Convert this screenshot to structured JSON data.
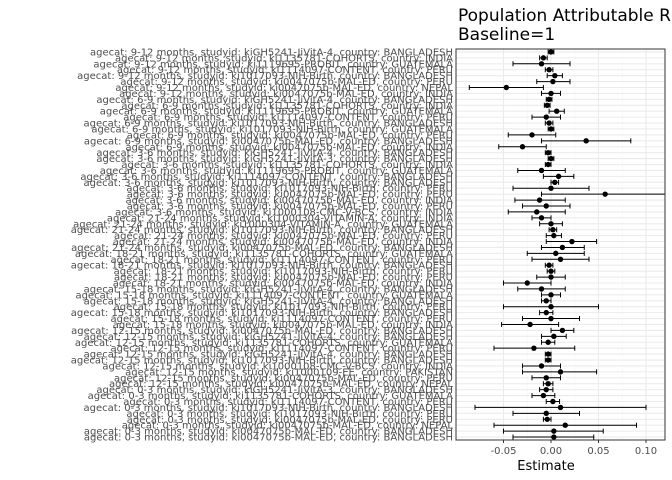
{
  "chart_data": {
    "type": "forest",
    "title": "Population Attributable Ris",
    "subtitle": "Baseline=1",
    "xlabel": "Estimate",
    "ylabel": "",
    "xlim": [
      -0.1,
      0.12
    ],
    "xticks": [
      -0.05,
      0.0,
      0.05,
      0.1
    ],
    "xtick_labels": [
      "-0.05",
      "0.00",
      "0.05",
      "0.10"
    ],
    "grid": true,
    "colors": {
      "point": "#000000",
      "grid_major": "#ebebeb",
      "grid_minor": "#f5f5f5",
      "panel_border": "#333333",
      "label": "#4d4d4d"
    },
    "rows": [
      {
        "label": "agecat: 9-12 months, studyid: kiGH5241-JiVitA-4, country: BANGLADESH",
        "est": 0.0,
        "lo": -0.003,
        "hi": 0.003
      },
      {
        "label": "agecat: 9-12 months, studyid: ki1135781-COHORTS, country: INDIA",
        "est": -0.008,
        "lo": -0.012,
        "hi": -0.004
      },
      {
        "label": "agecat: 9-12 months, studyid: ki1119695-PROBIT, country: GUATEMALA",
        "est": -0.01,
        "lo": -0.04,
        "hi": 0.02
      },
      {
        "label": "agecat: 9-12 months, studyid: ki1114097-CONTENT, country: PERU",
        "est": -0.002,
        "lo": -0.006,
        "hi": 0.002
      },
      {
        "label": "agecat: 9-12 months, studyid: ki1017093-NIH-Birth, country: BANGLADESH",
        "est": 0.004,
        "lo": -0.004,
        "hi": 0.012
      },
      {
        "label": "agecat: 9-12 months, studyid: ki0047075b-MAL-ED, country: PERU",
        "est": 0.002,
        "lo": -0.015,
        "hi": 0.02
      },
      {
        "label": "agecat: 9-12 months, studyid: ki0047075b-MAL-ED, country: NEPAL",
        "est": -0.047,
        "lo": -0.086,
        "hi": -0.008
      },
      {
        "label": "agecat: 9-12 months, studyid: ki0047075b-MAL-ED, country: INDIA",
        "est": 0.0,
        "lo": -0.01,
        "hi": 0.01
      },
      {
        "label": "agecat: 6-9 months, studyid: kiGH5241-JiVitA-4, country: BANGLADESH",
        "est": -0.002,
        "lo": -0.005,
        "hi": 0.001
      },
      {
        "label": "agecat: 6-9 months, studyid: ki1135781-COHORTS, country: INDIA",
        "est": -0.004,
        "lo": -0.007,
        "hi": -0.001
      },
      {
        "label": "agecat: 6-9 months, studyid: ki1119695-PROBIT, country: GUATEMALA",
        "est": 0.006,
        "lo": -0.002,
        "hi": 0.014
      },
      {
        "label": "agecat: 6-9 months, studyid: ki1114097-CONTENT, country: PERU",
        "est": -0.005,
        "lo": -0.02,
        "hi": 0.01
      },
      {
        "label": "agecat: 6-9 months, studyid: ki1017093-NIH-Birth, country: BANGLADESH",
        "est": -0.002,
        "lo": -0.006,
        "hi": 0.002
      },
      {
        "label": "agecat: 6-9 months, studyid: ki1017093-NIH-Birth, country: GUATEMALA",
        "est": 0.0,
        "lo": -0.003,
        "hi": 0.003
      },
      {
        "label": "agecat: 6-9 months, studyid: ki0047075b-MAL-ED, country: PERU",
        "est": -0.02,
        "lo": -0.045,
        "hi": 0.005
      },
      {
        "label": "agecat: 6-9 months, studyid: ki0047075b-MAL-ED, country: BANGLADESH",
        "est": 0.037,
        "lo": -0.01,
        "hi": 0.084
      },
      {
        "label": "agecat: 6-9 months, studyid: ki0047075b-MAL-ED, country: INDIA",
        "est": -0.03,
        "lo": -0.055,
        "hi": -0.005
      },
      {
        "label": "agecat: 3-6 months, studyid: kiGH5241-JiVitA-4, country: BANGLADESH",
        "est": -0.003,
        "lo": -0.006,
        "hi": 0.0
      },
      {
        "label": "agecat: 3-6 months, studyid: kiGH5241-JiVitA-3, country: BANGLADESH",
        "est": 0.0,
        "lo": -0.003,
        "hi": 0.003
      },
      {
        "label": "agecat: 3-6 months, studyid: ki1135781-COHORTS, country: INDIA",
        "est": -0.003,
        "lo": -0.006,
        "hi": 0.0
      },
      {
        "label": "agecat: 3-6 months, studyid: ki1119695-PROBIT, country: GUATEMALA",
        "est": -0.01,
        "lo": -0.035,
        "hi": 0.015
      },
      {
        "label": "agecat: 3-6 months, studyid: ki1114097-CONTENT, country: BANGLADESH",
        "est": 0.008,
        "lo": -0.008,
        "hi": 0.024
      },
      {
        "label": "agecat: 3-6 months, studyid: ki1017093-NIH-Birth, country: BANGLADESH",
        "est": 0.004,
        "lo": 0.0,
        "hi": 0.008
      },
      {
        "label": "agecat: 3-6 months, studyid: ki1017093-NIH-Birth, country: PERU",
        "est": 0.0,
        "lo": -0.04,
        "hi": 0.04
      },
      {
        "label": "agecat: 3-6 months, studyid: ki0047075b-MAL-ED, country: PERU",
        "est": 0.057,
        "lo": -0.01,
        "hi": 0.12
      },
      {
        "label": "agecat: 3-6 months, studyid: ki0047075b-MAL-ED, country: INDIA",
        "est": -0.012,
        "lo": -0.038,
        "hi": 0.015
      },
      {
        "label": "agecat: 3-6 months, studyid: ki0047075b-MAL-ED, country: PERU",
        "est": -0.005,
        "lo": -0.03,
        "hi": 0.02
      },
      {
        "label": "agecat: 3-6 months, studyid: ki1000108-CMC-V-BCS, country: INDIA",
        "est": -0.015,
        "lo": -0.045,
        "hi": 0.015
      },
      {
        "label": "agecat: 21-24 months, studyid: ki1000304-VITAMIN-A, country: INDIA",
        "est": -0.01,
        "lo": -0.02,
        "hi": 0.0
      },
      {
        "label": "agecat: 21-24 months, studyid: ki1000304-VITAMIN-A, country: GUATEMALA",
        "est": 0.0,
        "lo": -0.012,
        "hi": 0.012
      },
      {
        "label": "agecat: 21-24 months, studyid: ki1017093-NIH-Birth, country: BANGLADESH",
        "est": 0.002,
        "lo": -0.002,
        "hi": 0.006
      },
      {
        "label": "agecat: 21-24 months, studyid: ki0047075b-MAL-ED, country: PERU",
        "est": 0.003,
        "lo": -0.005,
        "hi": 0.011
      },
      {
        "label": "agecat: 21-24 months, studyid: ki0047075b-MAL-ED, country: INDIA",
        "est": 0.022,
        "lo": -0.005,
        "hi": 0.048
      },
      {
        "label": "agecat: 21-24 months, studyid: ki0047075b-MAL-ED, country: BANGLADESH",
        "est": 0.012,
        "lo": -0.01,
        "hi": 0.035
      },
      {
        "label": "agecat: 18-21 months, studyid: ki1135781-COHORTS, country: GUATEMALA",
        "est": 0.005,
        "lo": -0.025,
        "hi": 0.035
      },
      {
        "label": "agecat: 18-21 months, studyid: ki1114097-CONTENT, country: PERU",
        "est": 0.01,
        "lo": -0.02,
        "hi": 0.04
      },
      {
        "label": "agecat: 18-21 months, studyid: ki1017093-NIH-Birth, country: BANGLADESH",
        "est": -0.002,
        "lo": -0.006,
        "hi": 0.002
      },
      {
        "label": "agecat: 18-21 months, studyid: ki1017093-NIH-Birth, country: PERU",
        "est": 0.0,
        "lo": -0.004,
        "hi": 0.004
      },
      {
        "label": "agecat: 18-21 months, studyid: ki0047075b-MAL-ED, country: PERU",
        "est": 0.0,
        "lo": -0.015,
        "hi": 0.015
      },
      {
        "label": "agecat: 18-21 months, studyid: ki0047075b-MAL-ED, country: INDIA",
        "est": -0.025,
        "lo": -0.05,
        "hi": 0.0
      },
      {
        "label": "agecat: 15-18 months, studyid: kiGH5241-JiVitA-4, country: BANGLADESH",
        "est": -0.01,
        "lo": -0.035,
        "hi": 0.015
      },
      {
        "label": "agecat: 15-18 months, studyid: ki1114097-CONTENT, country: GUATEMALA",
        "est": 0.0,
        "lo": -0.01,
        "hi": 0.01
      },
      {
        "label": "agecat: 15-18 months, studyid: kiGH5241-JiVitA-4, country: BANGLADESH",
        "est": -0.005,
        "lo": -0.01,
        "hi": 0.0
      },
      {
        "label": "agecat: 15-18 months, studyid: ki1017093-NIH-Birth, country: PERU",
        "est": 0.0,
        "lo": -0.05,
        "hi": 0.05
      },
      {
        "label": "agecat: 15-18 months, studyid: ki1017093-NIH-Birth, country: BANGLADESH",
        "est": -0.005,
        "lo": -0.012,
        "hi": 0.002
      },
      {
        "label": "agecat: 15-18 months, studyid: ki1114097-CONTENT, country: PERU",
        "est": 0.0,
        "lo": -0.03,
        "hi": 0.03
      },
      {
        "label": "agecat: 15-18 months, studyid: ki0047075b-MAL-ED, country: INDIA",
        "est": -0.022,
        "lo": -0.052,
        "hi": 0.008
      },
      {
        "label": "agecat: 12-15 months, studyid: ki0047075b-MAL-ED, country: BANGLADESH",
        "est": 0.012,
        "lo": 0.0,
        "hi": 0.024
      },
      {
        "label": "agecat: 12-15 months, studyid: kiGH5241-JiVitA-4, country: BANGLADESH",
        "est": 0.003,
        "lo": -0.01,
        "hi": 0.016
      },
      {
        "label": "agecat: 12-15 months, studyid: ki1135781-COHORTS, country: GUATEMALA",
        "est": -0.003,
        "lo": -0.01,
        "hi": 0.004
      },
      {
        "label": "agecat: 12-15 months, studyid: ki1114097-CONTENT, country: PERU",
        "est": -0.018,
        "lo": -0.06,
        "hi": 0.025
      },
      {
        "label": "agecat: 12-15 months, studyid: kiGH5241-JiVitA-4, country: BANGLADESH",
        "est": -0.003,
        "lo": -0.006,
        "hi": 0.0
      },
      {
        "label": "agecat: 12-15 months, studyid: ki1017093-NIH-Birth, country: BANGLADESH",
        "est": -0.003,
        "lo": -0.006,
        "hi": 0.0
      },
      {
        "label": "agecat: 12-15 months, studyid: ki1000108-CMC-V-BCS, country: INDIA",
        "est": -0.01,
        "lo": -0.03,
        "hi": 0.01
      },
      {
        "label": "agecat: 12-15 months, studyid: ki1000109-EE, country: PAKISTAN",
        "est": 0.01,
        "lo": -0.03,
        "hi": 0.048
      },
      {
        "label": "agecat: 12-15 months, studyid: ki0047075b-MAL-ED, country: PERU",
        "est": -0.005,
        "lo": -0.02,
        "hi": 0.01
      },
      {
        "label": "agecat: 12-15 months, studyid: ki0047075b-MAL-ED, country: NEPAL",
        "est": -0.003,
        "lo": -0.008,
        "hi": 0.002
      },
      {
        "label": "agecat: 0-3 months, studyid: kiGH5241-JiVitA-3, country: BANGLADESH",
        "est": -0.005,
        "lo": -0.012,
        "hi": 0.002
      },
      {
        "label": "agecat: 0-3 months, studyid: ki1135781-COHORTS, country: GUATEMALA",
        "est": -0.008,
        "lo": -0.02,
        "hi": 0.004
      },
      {
        "label": "agecat: 0-3 months, studyid: ki1114097-CONTENT, country: PERU",
        "est": 0.002,
        "lo": -0.005,
        "hi": 0.009
      },
      {
        "label": "agecat: 0-3 months, studyid: ki1017093-NIH-Birth, country: BANGLADESH",
        "est": 0.01,
        "lo": -0.08,
        "hi": 0.1
      },
      {
        "label": "agecat: 0-3 months, studyid: ki1017093-NIH-Birth, country: PERU",
        "est": -0.005,
        "lo": -0.04,
        "hi": 0.03
      },
      {
        "label": "agecat: 0-3 months, studyid: ki0047075b-MAL-ED, country: PERU",
        "est": -0.004,
        "lo": -0.008,
        "hi": 0.0
      },
      {
        "label": "agecat: 0-3 months, studyid: ki0047075b-MAL-ED, country: NEPAL",
        "est": 0.015,
        "lo": -0.06,
        "hi": 0.09
      },
      {
        "label": "agecat: 0-3 months, studyid: ki0047075b-MAL-ED, country: BANGLADESH",
        "est": 0.003,
        "lo": -0.05,
        "hi": 0.055
      },
      {
        "label": "agecat: 0-3 months, studyid: ki0047075b-MAL-ED, country: BANGLADESH",
        "est": 0.003,
        "lo": -0.04,
        "hi": 0.045
      }
    ]
  }
}
